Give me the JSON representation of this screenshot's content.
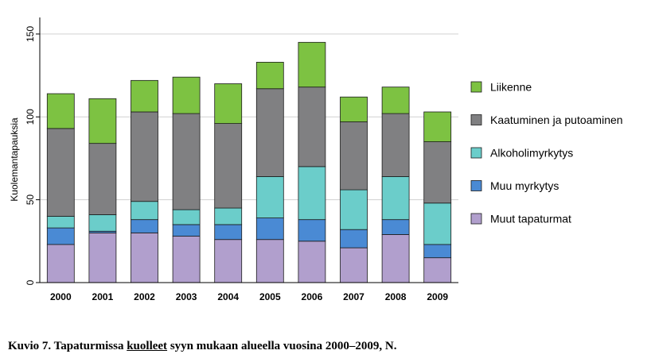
{
  "chart_data": {
    "type": "bar",
    "stacked": true,
    "title": "",
    "xlabel": "",
    "ylabel": "Kuolemantapauksia",
    "ylim": [
      0,
      160
    ],
    "yticks": [
      "0",
      "50",
      "100",
      "150"
    ],
    "grid": true,
    "legend_position": "right",
    "categories": [
      "2000",
      "2001",
      "2002",
      "2003",
      "2004",
      "2005",
      "2006",
      "2007",
      "2008",
      "2009"
    ],
    "series": [
      {
        "name": "Muut tapaturmat",
        "color": "#b19fcd",
        "values": [
          23,
          30,
          30,
          28,
          26,
          26,
          25,
          21,
          29,
          15
        ]
      },
      {
        "name": "Muu myrkytys",
        "color": "#4a8ad4",
        "values": [
          10,
          1,
          8,
          7,
          9,
          13,
          13,
          11,
          9,
          8
        ]
      },
      {
        "name": "Alkoholimyrkytys",
        "color": "#6bcdca",
        "values": [
          7,
          10,
          11,
          9,
          10,
          25,
          32,
          24,
          26,
          25
        ]
      },
      {
        "name": "Kaatuminen ja putoaminen",
        "color": "#808082",
        "values": [
          53,
          43,
          54,
          58,
          51,
          53,
          48,
          41,
          38,
          37
        ]
      },
      {
        "name": "Liikenne",
        "color": "#7dc242",
        "values": [
          21,
          27,
          19,
          22,
          24,
          16,
          27,
          15,
          16,
          18
        ]
      }
    ]
  },
  "caption": {
    "prefix": "Kuvio 7. Tapaturmissa ",
    "underlined": "kuolleet",
    "suffix": " syyn mukaan alueella vuosina 2000–2009, N."
  }
}
